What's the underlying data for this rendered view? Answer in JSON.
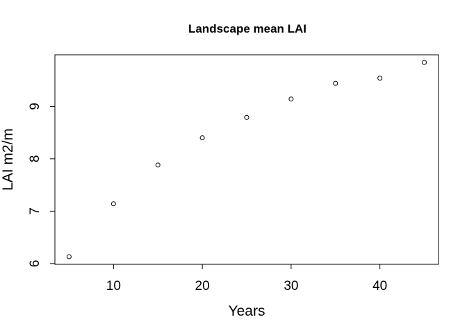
{
  "chart_data": {
    "type": "scatter",
    "title": "Landscape mean LAI",
    "xlabel": "Years",
    "ylabel": "LAI m2/m",
    "x": [
      5,
      10,
      15,
      20,
      25,
      30,
      35,
      40,
      45
    ],
    "y": [
      6.13,
      7.14,
      7.88,
      8.4,
      8.79,
      9.14,
      9.44,
      9.54,
      9.84
    ],
    "xticks": [
      10,
      20,
      30,
      40
    ],
    "yticks": [
      6,
      7,
      8,
      9
    ],
    "xlim": [
      3.4,
      46.6
    ],
    "ylim": [
      5.985,
      9.985
    ],
    "grid": false,
    "marker": "open-circle"
  }
}
